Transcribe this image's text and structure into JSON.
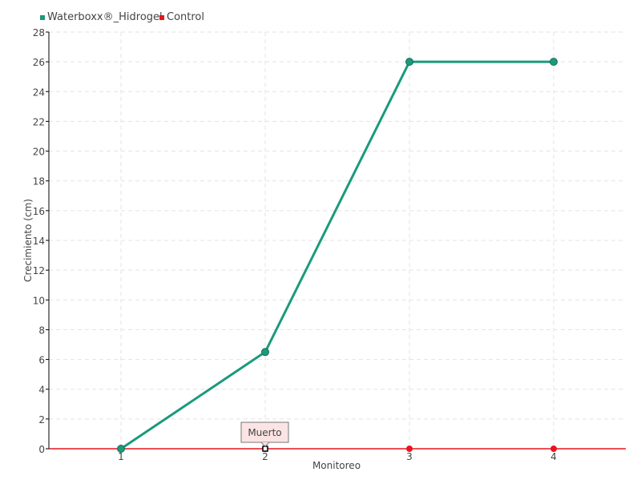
{
  "chart_data": {
    "type": "line",
    "xlabel": "Monitoreo",
    "ylabel": "Crecimiento (cm)",
    "categories": [
      "1",
      "2",
      "3",
      "4"
    ],
    "x": [
      1,
      2,
      3,
      4
    ],
    "xlim": [
      0.5,
      4.5
    ],
    "ylim": [
      0,
      28
    ],
    "yticks": [
      0,
      2,
      4,
      6,
      8,
      10,
      12,
      14,
      16,
      18,
      20,
      22,
      24,
      26,
      28
    ],
    "grid": true,
    "legend_position": "top-left",
    "series": [
      {
        "name": "Waterboxx®_Hidrogel",
        "color": "#1a9a7c",
        "values": [
          0,
          6.5,
          26,
          26
        ]
      },
      {
        "name": "Control",
        "color": "#e8141e",
        "values": [
          0,
          0,
          0,
          0
        ]
      }
    ],
    "annotations": [
      {
        "text": "Muerto",
        "series": "Control",
        "x": 2,
        "y": 0
      }
    ]
  }
}
